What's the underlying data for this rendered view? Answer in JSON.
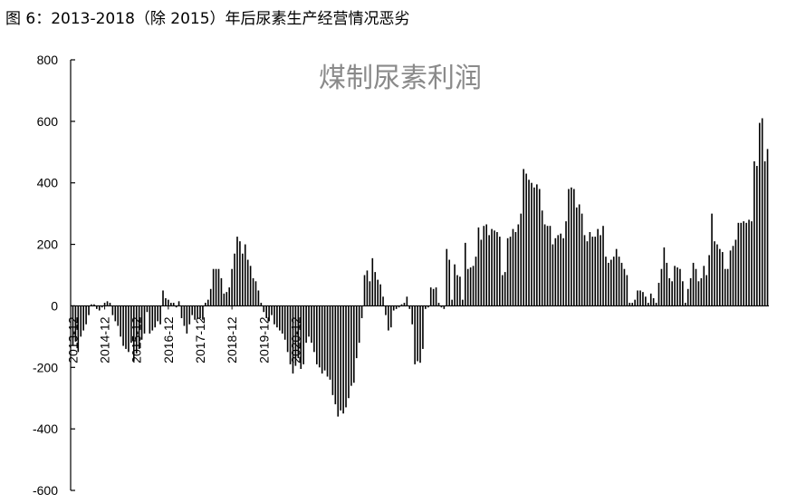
{
  "figure_caption": "图 6：2013-2018（除 2015）年后尿素生产经营情况恶劣",
  "chart_data": {
    "type": "bar",
    "title": "煤制尿素利润",
    "xlabel": "",
    "ylabel": "",
    "ylim": [
      -600,
      800
    ],
    "yticks": [
      -600,
      -400,
      -200,
      0,
      200,
      400,
      600,
      800
    ],
    "start_month": "2013-12",
    "x_tick_labels": [
      "2013-12",
      "2014-12",
      "2015-12",
      "2016-12",
      "2017-12",
      "2018-12",
      "2019-12",
      "2020-12"
    ],
    "bar_color": "#000000",
    "grid": false,
    "legend": "none",
    "values": [
      -130,
      -115,
      -150,
      -100,
      -80,
      -60,
      -30,
      5,
      5,
      -10,
      -15,
      -5,
      10,
      15,
      10,
      -30,
      -50,
      -65,
      -100,
      -130,
      -140,
      -150,
      -120,
      -180,
      -155,
      -140,
      -110,
      -90,
      -20,
      -90,
      -80,
      -70,
      -50,
      -60,
      50,
      25,
      20,
      10,
      10,
      -5,
      15,
      -40,
      -65,
      -90,
      -60,
      -30,
      -45,
      -40,
      -40,
      -45,
      10,
      20,
      55,
      120,
      120,
      120,
      90,
      40,
      45,
      60,
      120,
      170,
      225,
      210,
      170,
      200,
      150,
      130,
      90,
      80,
      50,
      10,
      -20,
      -40,
      -50,
      -30,
      -60,
      -70,
      -80,
      -90,
      -110,
      -150,
      -190,
      -220,
      -195,
      -170,
      -205,
      -190,
      -120,
      -100,
      -120,
      -150,
      -190,
      -200,
      -220,
      -210,
      -230,
      -240,
      -290,
      -320,
      -360,
      -340,
      -350,
      -330,
      -300,
      -260,
      -250,
      -170,
      -120,
      -40,
      100,
      115,
      80,
      155,
      110,
      85,
      70,
      30,
      -30,
      -80,
      -70,
      -15,
      -10,
      -5,
      5,
      10,
      30,
      -10,
      -60,
      -190,
      -180,
      -185,
      -140,
      -10,
      -5,
      60,
      55,
      60,
      10,
      -5,
      -10,
      185,
      150,
      20,
      135,
      100,
      95,
      20,
      205,
      120,
      125,
      130,
      160,
      255,
      215,
      260,
      265,
      230,
      250,
      245,
      240,
      225,
      100,
      110,
      220,
      225,
      250,
      240,
      265,
      300,
      445,
      430,
      410,
      400,
      385,
      395,
      380,
      310,
      265,
      260,
      260,
      200,
      220,
      230,
      235,
      220,
      275,
      380,
      385,
      380,
      320,
      330,
      300,
      230,
      210,
      240,
      225,
      225,
      250,
      230,
      260,
      160,
      140,
      150,
      160,
      185,
      160,
      140,
      120,
      100,
      10,
      10,
      20,
      50,
      50,
      45,
      30,
      10,
      40,
      25,
      10,
      75,
      120,
      190,
      140,
      90,
      80,
      130,
      125,
      120,
      80,
      10,
      55,
      90,
      140,
      120,
      80,
      90,
      130,
      100,
      165,
      300,
      210,
      200,
      185,
      175,
      120,
      120,
      180,
      195,
      215,
      270,
      270,
      275,
      270,
      280,
      275,
      470,
      455,
      595,
      610,
      470,
      510
    ]
  }
}
